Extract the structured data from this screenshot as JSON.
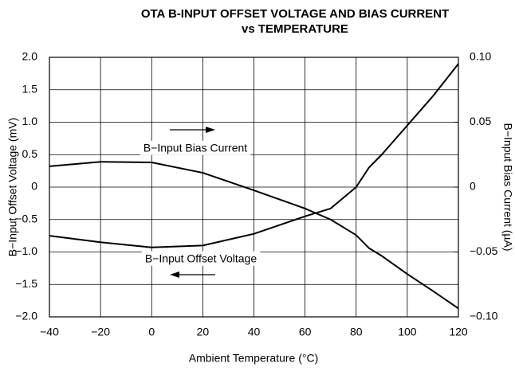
{
  "chart_data": {
    "type": "line",
    "title": [
      "OTA B-INPUT OFFSET VOLTAGE AND BIAS CURRENT",
      "vs TEMPERATURE"
    ],
    "xlabel": "Ambient Temperature (°C)",
    "ylabel": "B−Input Offset Voltage (mV)",
    "y2label": "B−Input Bias Current (µA)",
    "x": [
      -40,
      -20,
      0,
      20,
      40,
      60,
      70,
      80,
      85,
      90,
      100,
      110,
      120
    ],
    "series": [
      {
        "name": "B−Input Bias Current",
        "color": "#000000",
        "axis": "y2",
        "values": [
          0.016,
          0.0195,
          0.019,
          0.011,
          -0.0025,
          -0.0165,
          -0.025,
          -0.037,
          -0.047,
          -0.053,
          -0.067,
          -0.08,
          -0.0935
        ]
      },
      {
        "name": "B−Input Offset Voltage",
        "color": "#000000",
        "values": [
          -0.75,
          -0.85,
          -0.93,
          -0.9,
          -0.72,
          -0.45,
          -0.33,
          0.0,
          0.3,
          0.5,
          0.95,
          1.4,
          1.9
        ]
      }
    ],
    "xlim": [
      -40,
      120
    ],
    "xticks": [
      {
        "value": -40,
        "label": "−40"
      },
      {
        "value": -20,
        "label": "−20"
      },
      0,
      20,
      40,
      60,
      80,
      100,
      120
    ],
    "ylim": [
      -2,
      2
    ],
    "yticks": [
      {
        "value": -2,
        "label": "−2.0"
      },
      {
        "value": -1.5,
        "label": "−1.5"
      },
      {
        "value": -1,
        "label": "−1.0"
      },
      {
        "value": -0.5,
        "label": "−0.5"
      },
      0,
      0.5,
      {
        "value": 1,
        "label": "1.0"
      },
      1.5,
      {
        "value": 2,
        "label": "2.0"
      }
    ],
    "y2lim": [
      -0.1,
      0.1
    ],
    "y2ticks": [
      {
        "value": -0.1,
        "label": "−0.10"
      },
      {
        "value": -0.05,
        "label": "−0.05"
      },
      0,
      0.05,
      {
        "value": 0.1,
        "label": "0.10"
      }
    ],
    "grid": true
  }
}
